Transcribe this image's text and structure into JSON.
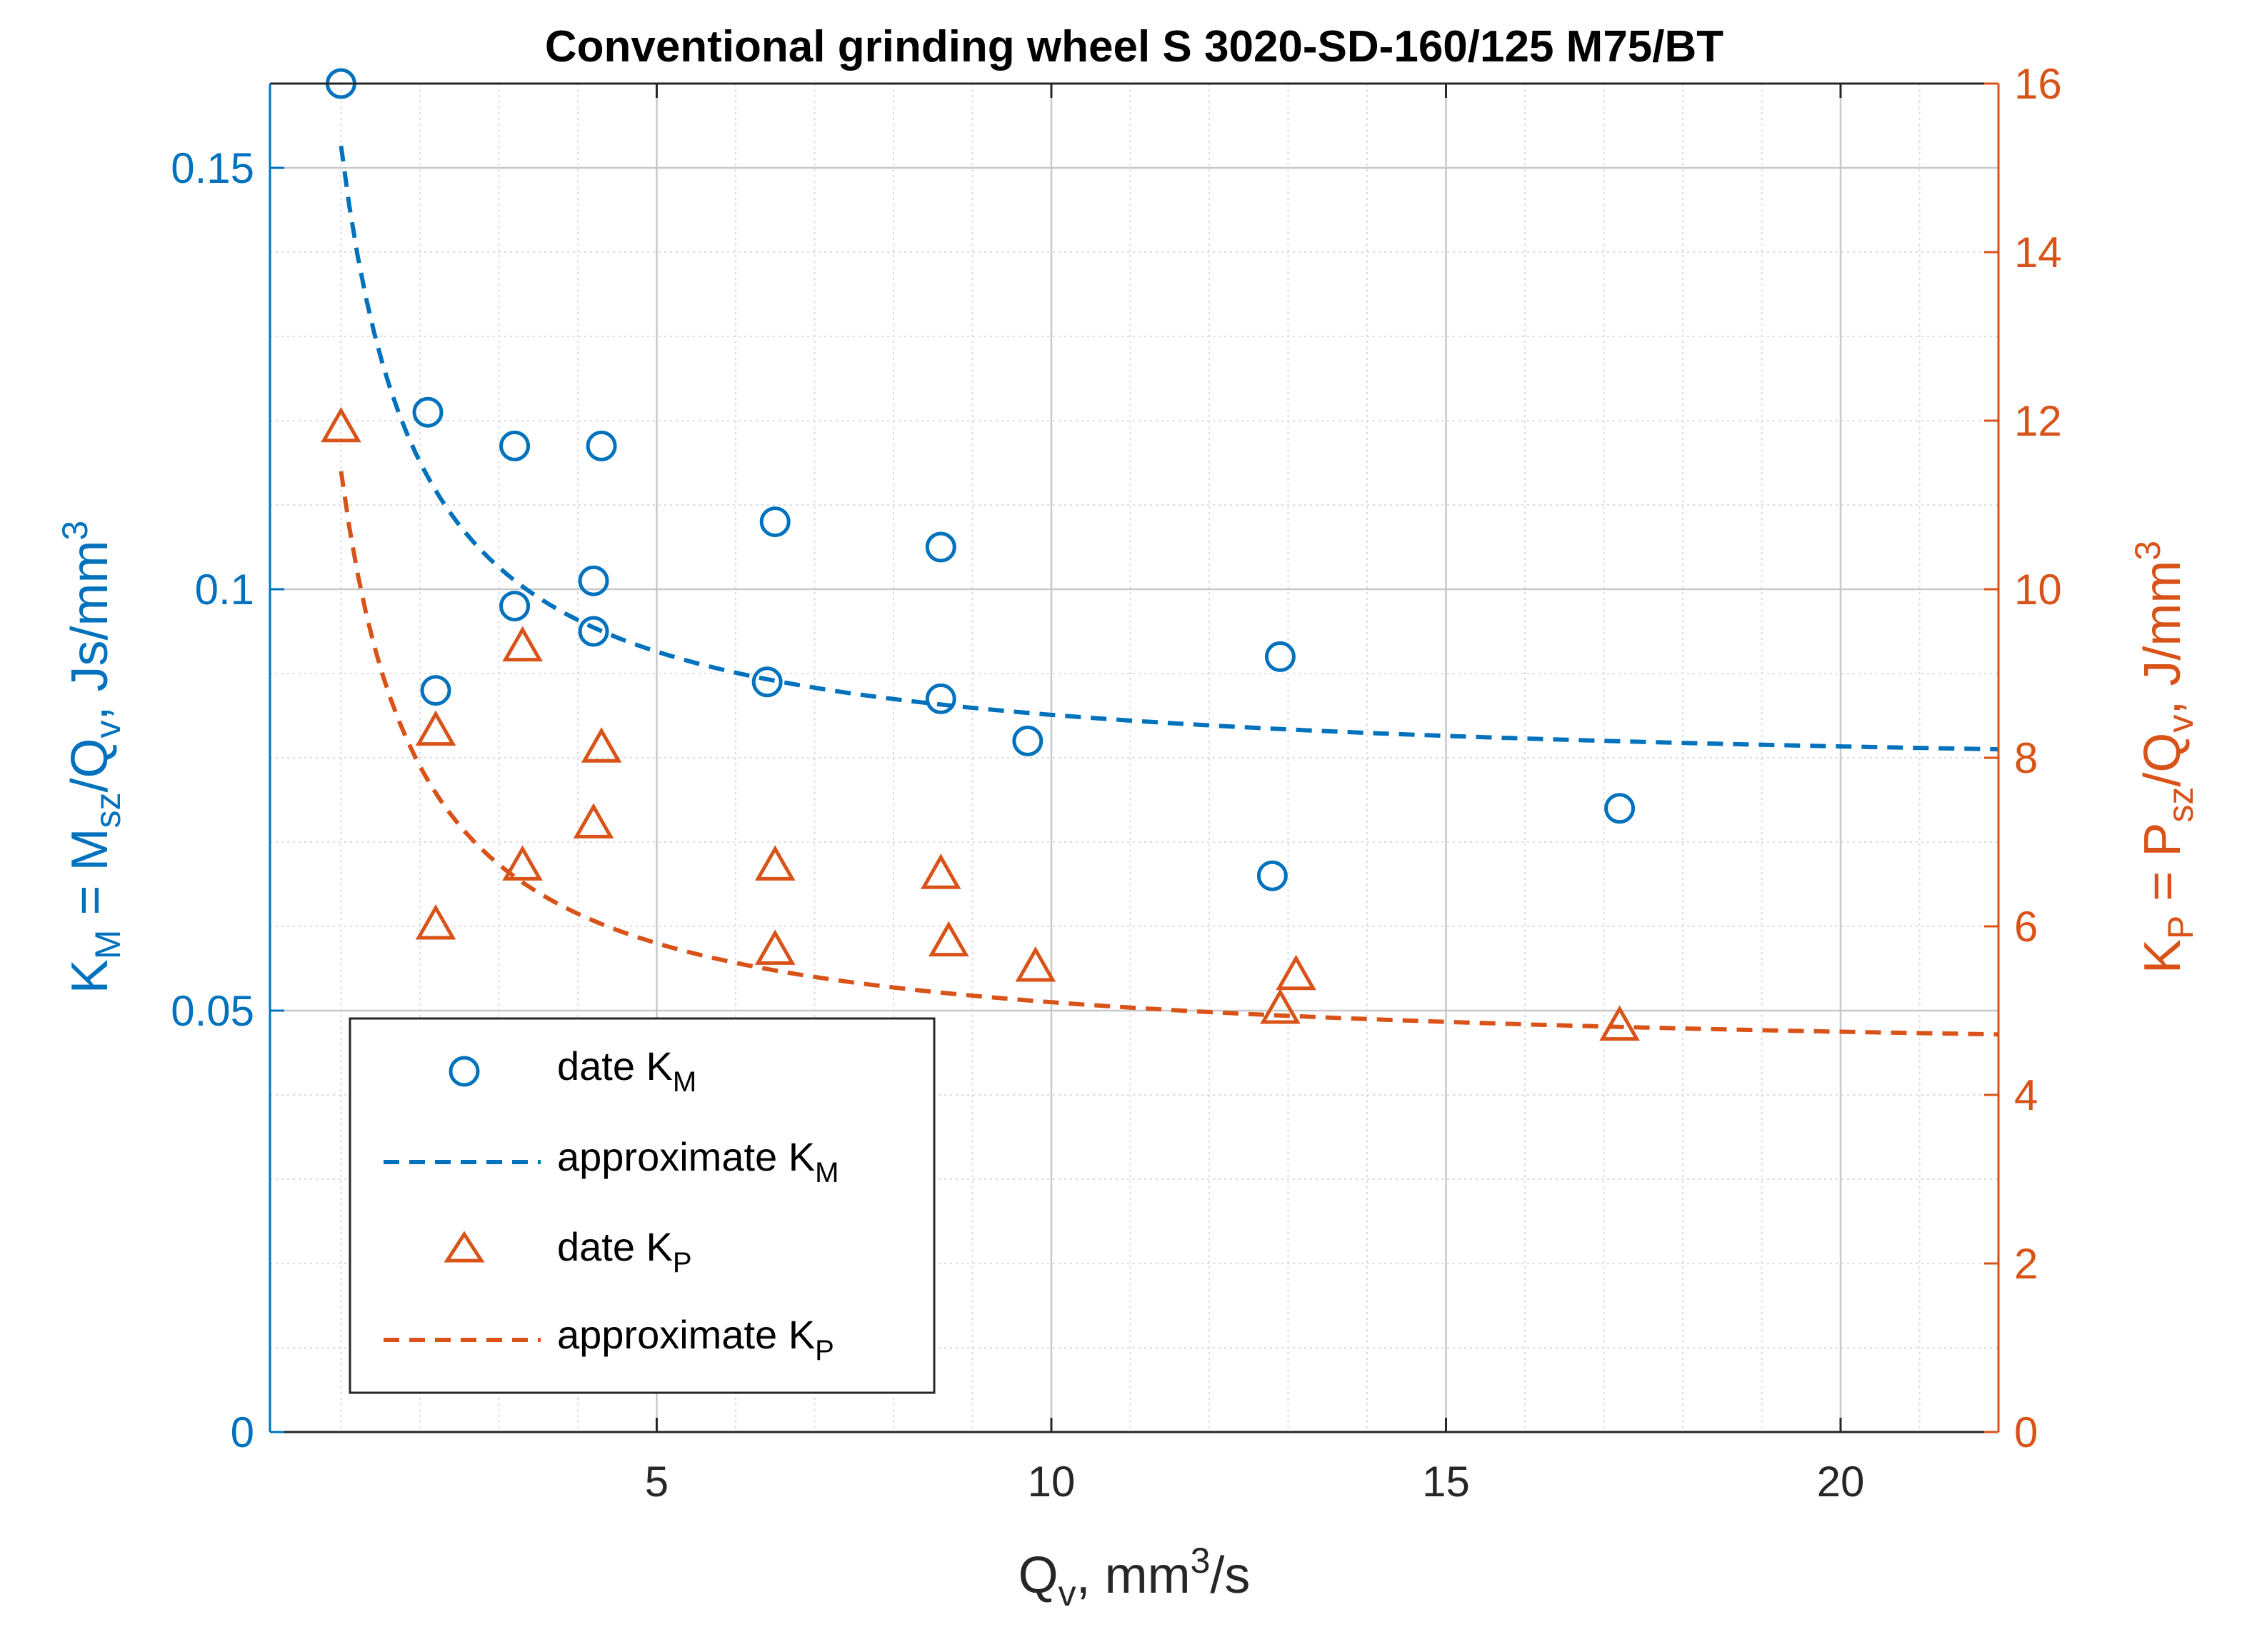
{
  "chart_data": {
    "type": "scatter",
    "title": "Conventional grinding wheel S 3020-SD-160/125 M75/BT",
    "xlabel": {
      "base": "Q",
      "sub": "v",
      "rest": ", mm",
      "sup": "3",
      "tail": "/s"
    },
    "ylabel_left": {
      "k": "K",
      "ksub": "M",
      "eq": " = M",
      "msub": "sz",
      "slash": "/Q",
      "qsub": "v",
      "unit": ", Js/mm",
      "sup": "3"
    },
    "ylabel_right": {
      "k": "K",
      "ksub": "P",
      "eq": " = P",
      "psub": "sz",
      "slash": "/Q",
      "qsub": "v",
      "unit": ", J/mm",
      "sup": "3"
    },
    "xlim": [
      0.1,
      22
    ],
    "ylim_left": [
      0,
      0.16
    ],
    "ylim_right": [
      0,
      16
    ],
    "x_ticks": [
      5,
      10,
      15,
      20
    ],
    "x_tick_labels": [
      "5",
      "10",
      "15",
      "20"
    ],
    "y_left_ticks": [
      0,
      0.05,
      0.1,
      0.15
    ],
    "y_left_tick_labels": [
      "0",
      "0.05",
      "0.1",
      "0.15"
    ],
    "y_right_ticks": [
      0,
      2,
      4,
      6,
      8,
      10,
      12,
      14,
      16
    ],
    "y_right_tick_labels": [
      "0",
      "2",
      "4",
      "6",
      "8",
      "10",
      "12",
      "14",
      "16"
    ],
    "grid": true,
    "minor_grid": true,
    "legend_position": "bottom-left",
    "colors": {
      "km": "#0072BD",
      "kp": "#D95319"
    },
    "series": [
      {
        "name": {
          "base": "date K",
          "sub": "M"
        },
        "axis": "left",
        "style": "circle",
        "points": [
          [
            1.0,
            0.16
          ],
          [
            2.1,
            0.121
          ],
          [
            2.2,
            0.088
          ],
          [
            3.2,
            0.117
          ],
          [
            3.2,
            0.098
          ],
          [
            4.3,
            0.117
          ],
          [
            4.2,
            0.101
          ],
          [
            4.2,
            0.095
          ],
          [
            6.5,
            0.108
          ],
          [
            6.4,
            0.089
          ],
          [
            8.6,
            0.105
          ],
          [
            8.6,
            0.087
          ],
          [
            9.7,
            0.082
          ],
          [
            12.9,
            0.092
          ],
          [
            12.8,
            0.066
          ],
          [
            17.2,
            0.074
          ]
        ]
      },
      {
        "name": {
          "base": "approximate K",
          "sub": "M"
        },
        "axis": "left",
        "style": "dashed",
        "curve": {
          "a": 0.0776,
          "b": 0.075,
          "form": "a + b / x"
        }
      },
      {
        "name": {
          "base": "date K",
          "sub": "P"
        },
        "axis": "right",
        "style": "triangle",
        "points": [
          [
            1.0,
            11.9
          ],
          [
            2.2,
            8.3
          ],
          [
            2.2,
            6.0
          ],
          [
            3.3,
            9.3
          ],
          [
            3.3,
            6.7
          ],
          [
            4.3,
            8.1
          ],
          [
            4.2,
            7.2
          ],
          [
            6.5,
            6.7
          ],
          [
            6.5,
            5.7
          ],
          [
            8.6,
            6.6
          ],
          [
            8.7,
            5.8
          ],
          [
            9.8,
            5.5
          ],
          [
            12.9,
            5.0
          ],
          [
            13.1,
            5.4
          ],
          [
            17.2,
            4.8
          ]
        ]
      },
      {
        "name": {
          "base": "approximate K",
          "sub": "P"
        },
        "axis": "right",
        "style": "dashed",
        "curve": {
          "a": 4.4,
          "b": 7.0,
          "form": "a + b / x"
        }
      }
    ]
  }
}
